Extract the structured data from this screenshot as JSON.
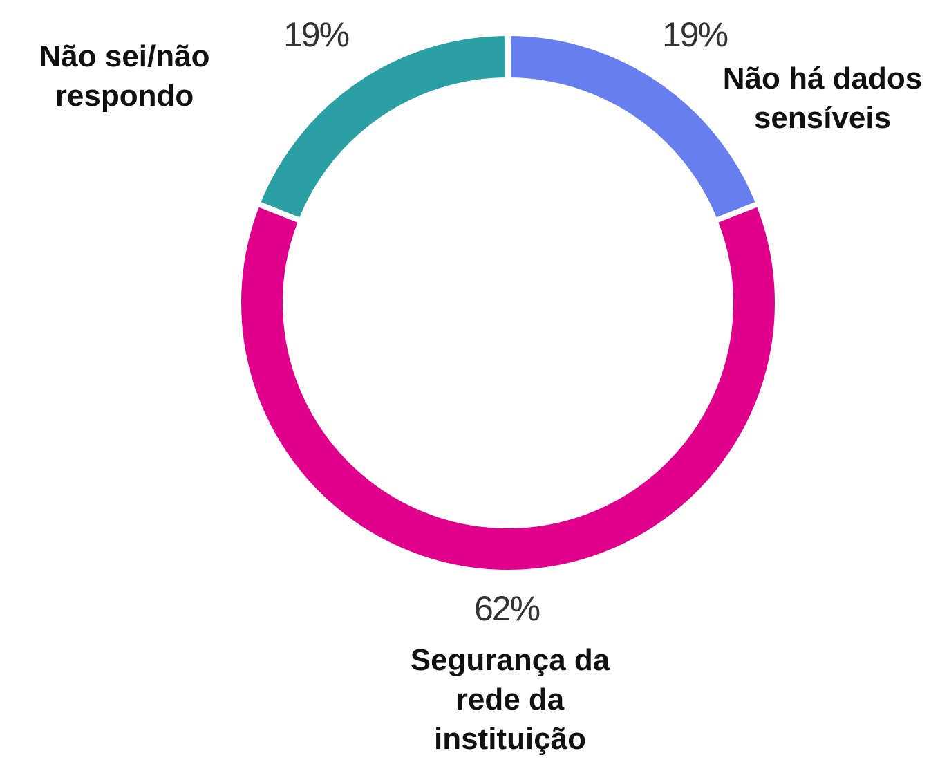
{
  "chart_data": {
    "type": "donut",
    "categories": [
      "Não há dados sensíveis",
      "Segurança da rede da instituição",
      "Não sei/não respondo"
    ],
    "values": [
      19,
      62,
      19
    ],
    "value_labels": [
      "19%",
      "62%",
      "19%"
    ],
    "colors": [
      "#667eee",
      "#e0008c",
      "#2aa0a4"
    ]
  }
}
